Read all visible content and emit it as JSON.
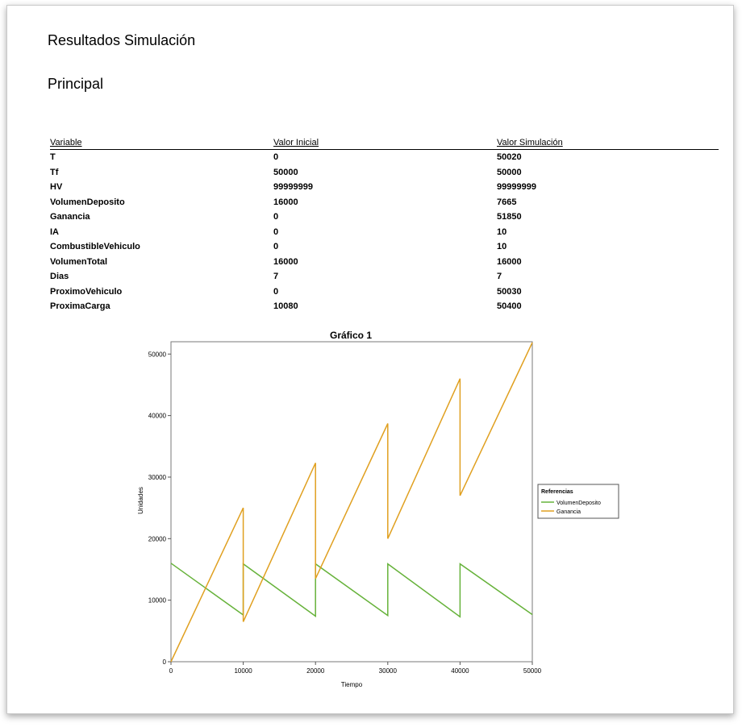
{
  "title": "Resultados Simulación",
  "section": "Principal",
  "table": {
    "headers": [
      "Variable",
      "Valor Inicial",
      "Valor Simulación"
    ],
    "rows": [
      [
        "T",
        "0",
        "50020"
      ],
      [
        "Tf",
        "50000",
        "50000"
      ],
      [
        "HV",
        "99999999",
        "99999999"
      ],
      [
        "VolumenDeposito",
        "16000",
        "7665"
      ],
      [
        "Ganancia",
        "0",
        "51850"
      ],
      [
        "IA",
        "0",
        "10"
      ],
      [
        "CombustibleVehiculo",
        "0",
        "10"
      ],
      [
        "VolumenTotal",
        "16000",
        "16000"
      ],
      [
        "Dias",
        "7",
        "7"
      ],
      [
        "ProximoVehiculo",
        "0",
        "50030"
      ],
      [
        "ProximaCarga",
        "10080",
        "50400"
      ]
    ]
  },
  "chart_data": {
    "type": "line",
    "title": "Gráfico 1",
    "xlabel": "Tiempo",
    "ylabel": "Unidades",
    "xlim": [
      0,
      50000
    ],
    "ylim": [
      0,
      52000
    ],
    "xticks": [
      0,
      10000,
      20000,
      30000,
      40000,
      50000
    ],
    "yticks": [
      0,
      10000,
      20000,
      30000,
      40000,
      50000
    ],
    "legend_title": "Referencias",
    "legend_position": "right",
    "series": [
      {
        "name": "VolumenDeposito",
        "color": "#66b23a",
        "x": [
          0,
          10000,
          10000,
          20000,
          20000,
          30000,
          30000,
          40000,
          40000,
          50000
        ],
        "y": [
          16000,
          7600,
          15900,
          7400,
          15900,
          7500,
          15900,
          7300,
          15900,
          7665
        ]
      },
      {
        "name": "Ganancia",
        "color": "#e0a020",
        "x": [
          0,
          10000,
          10000,
          20000,
          20000,
          30000,
          30000,
          40000,
          40000,
          50000
        ],
        "y": [
          0,
          25000,
          6500,
          32300,
          13500,
          38700,
          20000,
          46000,
          27000,
          51850
        ]
      }
    ]
  }
}
